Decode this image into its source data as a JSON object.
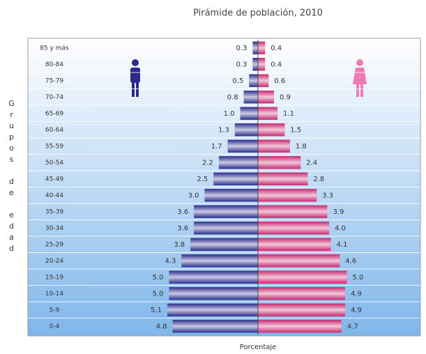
{
  "chart_data": {
    "type": "pyramid",
    "title": "Pirámide de población, 2010",
    "x_label": "Porcentaje",
    "y_label": "Grupos de edad",
    "categories": [
      "85 y más",
      "80-84",
      "75-79",
      "70-74",
      "65-69",
      "60-64",
      "55-59",
      "50-54",
      "45-49",
      "40-44",
      "35-39",
      "30-34",
      "25-29",
      "20-24",
      "15-19",
      "10-14",
      "5-9",
      "0-4"
    ],
    "series": [
      {
        "name": "Hombres",
        "color": "#2b2b8c",
        "values": [
          0.3,
          0.3,
          0.5,
          0.8,
          1.0,
          1.3,
          1.7,
          2.2,
          2.5,
          3.0,
          3.6,
          3.6,
          3.8,
          4.3,
          5.0,
          5.0,
          5.1,
          4.8
        ],
        "value_labels": [
          "0.3",
          "0.3",
          "0.5",
          "0.8",
          "1.0",
          "1.3",
          "1.7",
          "2.2",
          "2.5",
          "3.0",
          "3.6",
          "3.6",
          "3.8",
          "4.3",
          "5.0",
          "5.0",
          "5.1",
          "4.8"
        ]
      },
      {
        "name": "Mujeres",
        "color": "#c8286e",
        "values": [
          0.4,
          0.4,
          0.6,
          0.9,
          1.1,
          1.5,
          1.8,
          2.4,
          2.8,
          3.3,
          3.9,
          4.0,
          4.1,
          4.6,
          5.0,
          4.9,
          4.9,
          4.7
        ],
        "value_labels": [
          "0.4",
          "0.4",
          "0.6",
          "0.9",
          "1.1",
          "1.5",
          "1.8",
          "2.4",
          "2.8",
          "3.3",
          "3.9",
          "4.0",
          "4.1",
          "4.6",
          "5.0",
          "4.9",
          "4.9",
          "4.7"
        ]
      }
    ]
  }
}
